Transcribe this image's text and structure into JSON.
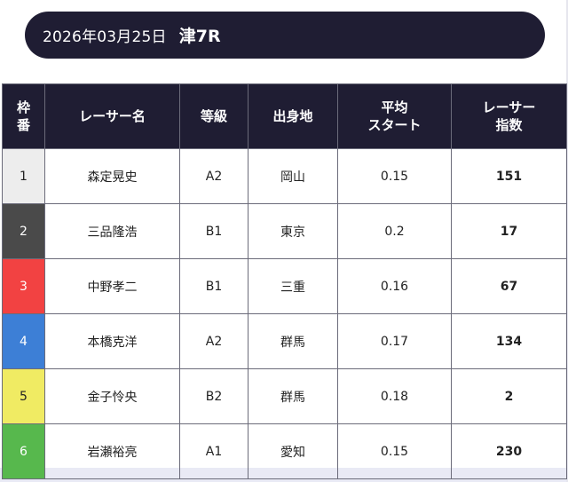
{
  "header": {
    "date": "2026年03月25日",
    "race": "津7R"
  },
  "table": {
    "columns": {
      "frame_line1": "枠",
      "frame_line2": "番",
      "name": "レーサー名",
      "grade": "等級",
      "origin": "出身地",
      "start_line1": "平均",
      "start_line2": "スタート",
      "index_line1": "レーサー",
      "index_line2": "指数"
    },
    "rows": [
      {
        "frame": "1",
        "name": "森定晃史",
        "grade": "A2",
        "origin": "岡山",
        "start": "0.15",
        "index": "151"
      },
      {
        "frame": "2",
        "name": "三品隆浩",
        "grade": "B1",
        "origin": "東京",
        "start": "0.2",
        "index": "17"
      },
      {
        "frame": "3",
        "name": "中野孝二",
        "grade": "B1",
        "origin": "三重",
        "start": "0.16",
        "index": "67"
      },
      {
        "frame": "4",
        "name": "本橋克洋",
        "grade": "A2",
        "origin": "群馬",
        "start": "0.17",
        "index": "134"
      },
      {
        "frame": "5",
        "name": "金子怜央",
        "grade": "B2",
        "origin": "群馬",
        "start": "0.18",
        "index": "2"
      },
      {
        "frame": "6",
        "name": "岩瀬裕亮",
        "grade": "A1",
        "origin": "愛知",
        "start": "0.15",
        "index": "230"
      }
    ],
    "frame_colors": {
      "1": {
        "bg": "#ededed",
        "fg": "#222222"
      },
      "2": {
        "bg": "#4a4a4a",
        "fg": "#ffffff"
      },
      "3": {
        "bg": "#f24242",
        "fg": "#ffffff"
      },
      "4": {
        "bg": "#3d7fd6",
        "fg": "#ffffff"
      },
      "5": {
        "bg": "#f0eb63",
        "fg": "#222222"
      },
      "6": {
        "bg": "#57b84d",
        "fg": "#ffffff"
      }
    }
  }
}
